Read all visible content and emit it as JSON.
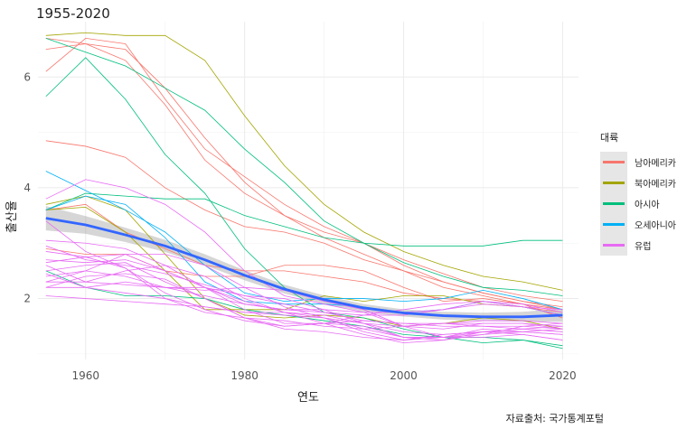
{
  "chart_data": {
    "type": "line",
    "title": "1955-2020",
    "xlabel": "연도",
    "ylabel": "출산율",
    "caption": "자료출처: 국가통계포털",
    "xlim": [
      1954,
      2022
    ],
    "ylim": [
      0.9,
      7.0
    ],
    "x_ticks": [
      1960,
      1980,
      2000,
      2020
    ],
    "y_ticks": [
      2,
      4,
      6
    ],
    "grid": true,
    "legend_title": "대륙",
    "legend_position": "right",
    "colors": {
      "남아메리카": "#F8766D",
      "북아메리카": "#A3A500",
      "아시아": "#00BF7D",
      "오세아니아": "#00B0F6",
      "유럽": "#E76BF3",
      "smooth": "#3366FF"
    },
    "legend_entries": [
      "남아메리카",
      "북아메리카",
      "아시아",
      "오세아니아",
      "유럽"
    ],
    "x": [
      1955,
      1960,
      1965,
      1970,
      1975,
      1980,
      1985,
      1990,
      1995,
      2000,
      2005,
      2010,
      2015,
      2020
    ],
    "series": [
      {
        "group": "남아메리카",
        "values": [
          6.1,
          6.7,
          6.6,
          5.6,
          4.7,
          4.2,
          3.7,
          3.3,
          3.0,
          2.7,
          2.45,
          2.2,
          2.05,
          1.95
        ]
      },
      {
        "group": "남아메리카",
        "values": [
          6.5,
          6.6,
          6.5,
          5.8,
          4.9,
          4.1,
          3.5,
          3.1,
          2.8,
          2.5,
          2.3,
          2.1,
          1.95,
          1.85
        ]
      },
      {
        "group": "남아메리카",
        "values": [
          4.85,
          4.75,
          4.55,
          4.0,
          3.6,
          3.3,
          3.2,
          3.0,
          2.7,
          2.5,
          2.2,
          2.05,
          1.9,
          1.8
        ]
      },
      {
        "group": "남아메리카",
        "values": [
          6.7,
          6.6,
          6.3,
          5.5,
          4.5,
          3.9,
          3.5,
          3.2,
          3.0,
          2.6,
          2.3,
          2.1,
          1.95,
          1.8
        ]
      },
      {
        "group": "남아메리카",
        "values": [
          3.6,
          3.7,
          3.2,
          2.9,
          2.6,
          2.5,
          2.5,
          2.4,
          2.3,
          2.1,
          2.0,
          1.95,
          1.85,
          1.75
        ]
      },
      {
        "group": "남아메리카",
        "values": [
          2.9,
          2.8,
          2.8,
          2.5,
          2.4,
          2.4,
          2.6,
          2.6,
          2.5,
          2.2,
          1.95,
          2.0,
          1.9,
          1.65
        ]
      },
      {
        "group": "북아메리카",
        "values": [
          6.75,
          6.8,
          6.75,
          6.75,
          6.3,
          5.3,
          4.4,
          3.7,
          3.2,
          2.85,
          2.6,
          2.4,
          2.3,
          2.15
        ]
      },
      {
        "group": "북아메리카",
        "values": [
          3.6,
          3.65,
          3.2,
          2.5,
          1.8,
          1.8,
          1.8,
          2.05,
          1.95,
          2.05,
          2.05,
          1.9,
          1.85,
          1.7
        ]
      },
      {
        "group": "북아메리카",
        "values": [
          3.7,
          3.85,
          3.6,
          2.8,
          2.0,
          1.7,
          1.65,
          1.7,
          1.65,
          1.5,
          1.55,
          1.65,
          1.6,
          1.45
        ]
      },
      {
        "group": "아시아",
        "values": [
          5.65,
          6.35,
          5.6,
          4.6,
          3.9,
          2.9,
          2.2,
          1.75,
          1.65,
          1.45,
          1.3,
          1.3,
          1.25,
          1.15
        ]
      },
      {
        "group": "아시아",
        "values": [
          6.7,
          6.45,
          6.2,
          5.8,
          5.4,
          4.7,
          4.1,
          3.4,
          3.0,
          2.65,
          2.4,
          2.2,
          2.15,
          2.05
        ]
      },
      {
        "group": "아시아",
        "values": [
          3.6,
          3.9,
          3.85,
          3.8,
          3.8,
          3.5,
          3.3,
          3.1,
          3.0,
          2.95,
          2.95,
          2.95,
          3.05,
          3.05
        ]
      },
      {
        "group": "아시아",
        "values": [
          2.5,
          2.2,
          2.05,
          2.05,
          2.0,
          1.8,
          1.7,
          1.6,
          1.5,
          1.35,
          1.3,
          1.2,
          1.25,
          1.1
        ]
      },
      {
        "group": "오세아니아",
        "values": [
          3.6,
          3.85,
          3.7,
          3.1,
          2.3,
          1.95,
          1.9,
          1.9,
          1.85,
          1.75,
          1.8,
          1.95,
          1.85,
          1.7
        ]
      },
      {
        "group": "오세아니아",
        "values": [
          4.3,
          3.95,
          3.6,
          3.2,
          2.6,
          2.1,
          1.95,
          2.0,
          2.0,
          1.95,
          2.0,
          2.15,
          2.0,
          1.8
        ]
      },
      {
        "group": "유럽",
        "values": [
          3.8,
          4.15,
          4.0,
          3.7,
          3.2,
          2.5,
          2.05,
          1.9,
          1.75,
          1.5,
          1.45,
          1.55,
          1.55,
          1.5
        ]
      },
      {
        "group": "유럽",
        "values": [
          3.05,
          3.0,
          2.9,
          2.6,
          2.2,
          1.9,
          1.8,
          1.75,
          1.7,
          1.7,
          1.8,
          1.9,
          1.85,
          1.8
        ]
      },
      {
        "group": "유럽",
        "values": [
          2.3,
          2.5,
          2.4,
          2.2,
          2.05,
          1.9,
          1.8,
          1.8,
          1.75,
          1.75,
          1.8,
          1.95,
          1.9,
          1.75
        ]
      },
      {
        "group": "유럽",
        "values": [
          2.5,
          2.6,
          2.65,
          2.3,
          2.0,
          1.65,
          1.5,
          1.55,
          1.6,
          1.55,
          1.5,
          1.5,
          1.5,
          1.45
        ]
      },
      {
        "group": "유럽",
        "values": [
          2.2,
          2.4,
          2.45,
          2.35,
          2.0,
          1.65,
          1.45,
          1.4,
          1.3,
          1.25,
          1.3,
          1.4,
          1.4,
          1.35
        ]
      },
      {
        "group": "유럽",
        "values": [
          2.7,
          2.65,
          2.7,
          2.5,
          2.2,
          1.8,
          1.55,
          1.55,
          1.5,
          1.3,
          1.3,
          1.45,
          1.4,
          1.35
        ]
      },
      {
        "group": "유럽",
        "values": [
          2.85,
          2.75,
          2.55,
          2.0,
          1.75,
          1.65,
          1.6,
          1.5,
          1.45,
          1.5,
          1.55,
          1.6,
          1.6,
          1.55
        ]
      },
      {
        "group": "유럽",
        "values": [
          2.6,
          2.3,
          2.5,
          2.6,
          2.4,
          2.0,
          1.75,
          1.65,
          1.55,
          1.5,
          1.55,
          1.5,
          1.45,
          1.4
        ]
      },
      {
        "group": "유럽",
        "values": [
          2.2,
          2.2,
          2.1,
          2.0,
          1.85,
          1.75,
          1.75,
          1.7,
          1.55,
          1.4,
          1.35,
          1.4,
          1.45,
          1.5
        ]
      },
      {
        "group": "유럽",
        "values": [
          2.4,
          2.5,
          2.8,
          2.8,
          2.6,
          2.2,
          1.85,
          1.65,
          1.4,
          1.25,
          1.35,
          1.4,
          1.35,
          1.25
        ]
      },
      {
        "group": "유럽",
        "values": [
          3.4,
          2.85,
          2.55,
          2.1,
          1.8,
          1.6,
          1.5,
          1.55,
          1.7,
          1.8,
          1.9,
          1.95,
          1.85,
          1.7
        ]
      },
      {
        "group": "유럽",
        "values": [
          2.3,
          2.3,
          2.25,
          2.2,
          2.2,
          2.05,
          2.0,
          1.8,
          1.55,
          1.3,
          1.25,
          1.35,
          1.4,
          1.45
        ]
      },
      {
        "group": "유럽",
        "values": [
          2.65,
          2.75,
          2.8,
          2.5,
          2.2,
          1.95,
          1.75,
          1.55,
          1.35,
          1.2,
          1.25,
          1.4,
          1.45,
          1.4
        ]
      },
      {
        "group": "유럽",
        "values": [
          2.05,
          2.0,
          1.95,
          1.9,
          1.85,
          1.75,
          1.7,
          1.65,
          1.45,
          1.3,
          1.3,
          1.35,
          1.5,
          1.55
        ]
      },
      {
        "group": "유럽",
        "values": [
          2.95,
          2.7,
          2.6,
          2.45,
          2.25,
          2.05,
          1.9,
          1.75,
          1.6,
          1.55,
          1.55,
          1.55,
          1.55,
          1.45
        ]
      },
      {
        "group": "유럽",
        "values": [
          2.45,
          2.2,
          2.3,
          2.2,
          2.15,
          2.2,
          2.15,
          1.95,
          1.8,
          1.5,
          1.3,
          1.3,
          1.35,
          1.25
        ]
      }
    ],
    "smooth": {
      "x": [
        1955,
        1960,
        1965,
        1970,
        1975,
        1980,
        1985,
        1990,
        1995,
        2000,
        2005,
        2010,
        2015,
        2020
      ],
      "y": [
        3.45,
        3.33,
        3.15,
        2.95,
        2.7,
        2.42,
        2.17,
        1.98,
        1.83,
        1.74,
        1.69,
        1.67,
        1.67,
        1.7
      ],
      "se": [
        0.22,
        0.16,
        0.13,
        0.11,
        0.1,
        0.09,
        0.08,
        0.075,
        0.07,
        0.065,
        0.07,
        0.075,
        0.09,
        0.12
      ]
    }
  }
}
